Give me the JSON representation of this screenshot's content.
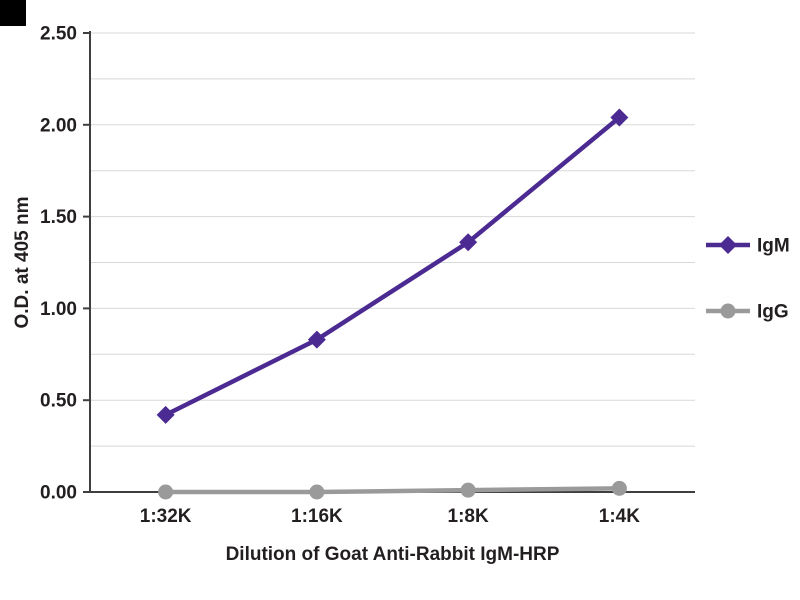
{
  "chart_data": {
    "type": "line",
    "title": "",
    "xlabel": "Dilution of Goat Anti-Rabbit IgM-HRP",
    "ylabel": "O.D. at 405 nm",
    "categories": [
      "1:32K",
      "1:16K",
      "1:8K",
      "1:4K"
    ],
    "series": [
      {
        "name": "IgM",
        "color": "#4b2a92",
        "marker": "diamond",
        "values": [
          0.42,
          0.83,
          1.36,
          2.04
        ]
      },
      {
        "name": "IgG",
        "color": "#9a9a9a",
        "marker": "circle",
        "values": [
          0.0,
          0.0,
          0.01,
          0.02
        ]
      }
    ],
    "ylim": [
      0,
      2.5
    ],
    "ytick_step": 0.5,
    "grid_step": 0.25,
    "grid": true,
    "legend_position": "right"
  },
  "style_colors": {
    "grid": "#d8d8d8",
    "axis": "#3f3f3f",
    "text": "#231f20"
  }
}
